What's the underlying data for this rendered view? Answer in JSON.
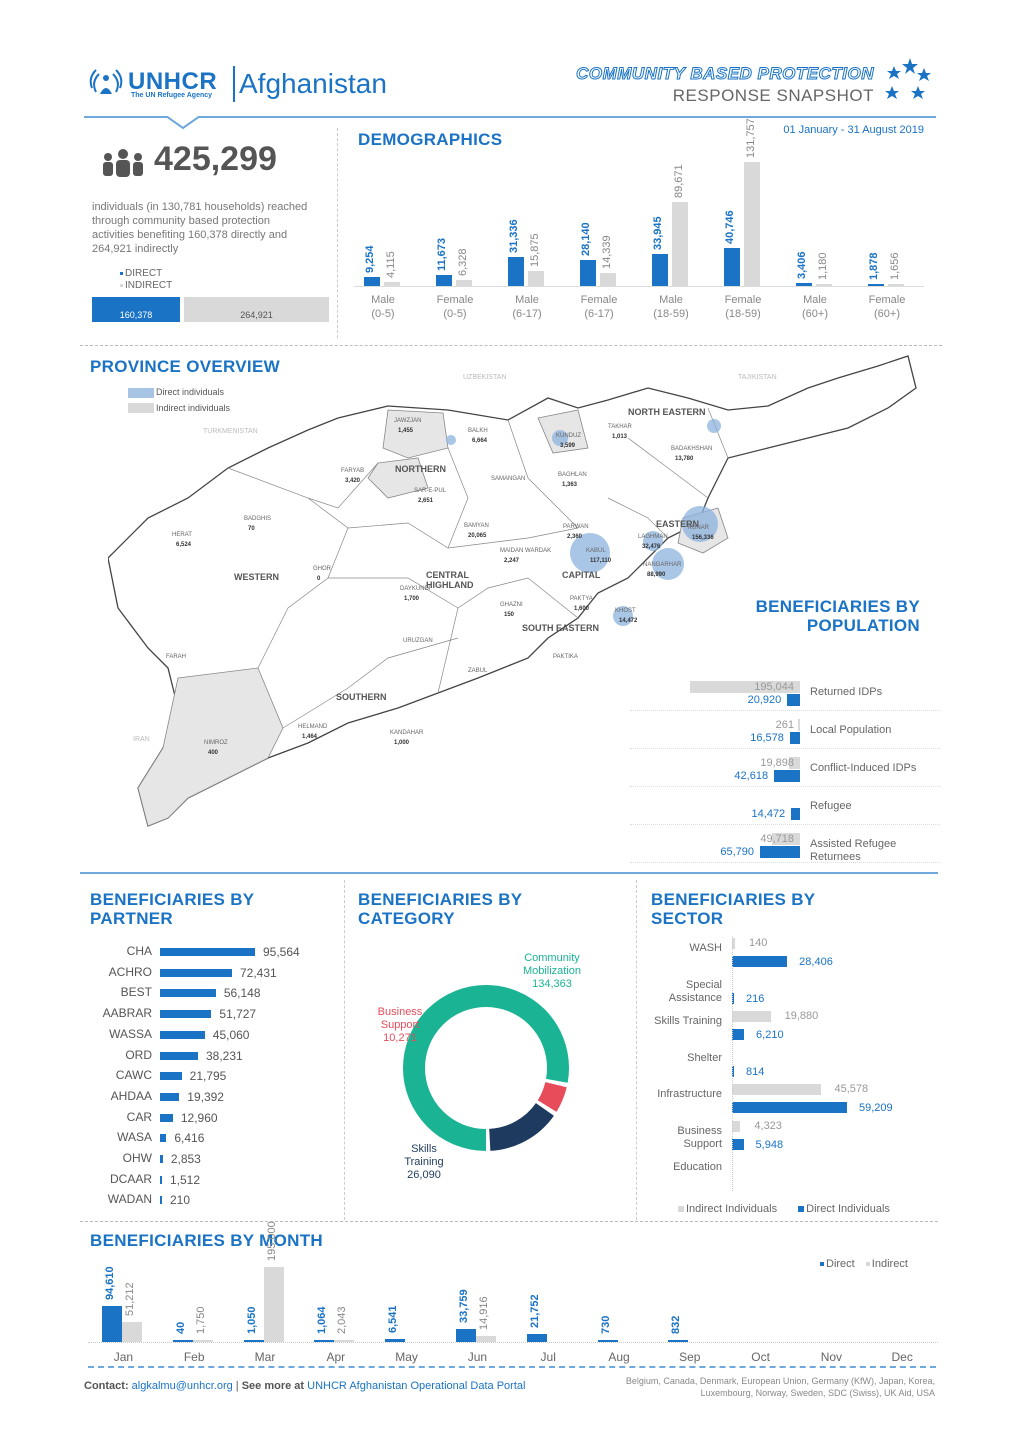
{
  "header": {
    "org": "UNHCR",
    "org_sub": "The UN Refugee Agency",
    "country": "Afghanistan",
    "title_line1": "COMMUNITY BASED PROTECTION",
    "title_line2": "RESPONSE SNAPSHOT",
    "date_range": "01 January - 31 August 2019"
  },
  "kpi": {
    "total": "425,299",
    "description": "individuals (in 130,781 households) reached through community based protection activities benefiting 160,378 directly and 264,921 indirectly",
    "legend_direct": "DIRECT",
    "legend_indirect": "INDIRECT",
    "direct": "160,378",
    "indirect": "264,921",
    "direct_value": 160378,
    "indirect_value": 264921
  },
  "demographics": {
    "title": "DEMOGRAPHICS",
    "groups": [
      {
        "label1": "Male",
        "label2": "(0-5)",
        "direct": "9,254",
        "indirect": "4,115",
        "d": 9254,
        "i": 4115
      },
      {
        "label1": "Female",
        "label2": "(0-5)",
        "direct": "11,673",
        "indirect": "6,328",
        "d": 11673,
        "i": 6328
      },
      {
        "label1": "Male",
        "label2": "(6-17)",
        "direct": "31,336",
        "indirect": "15,875",
        "d": 31336,
        "i": 15875
      },
      {
        "label1": "Female",
        "label2": "(6-17)",
        "direct": "28,140",
        "indirect": "14,339",
        "d": 28140,
        "i": 14339
      },
      {
        "label1": "Male",
        "label2": "(18-59)",
        "direct": "33,945",
        "indirect": "89,671",
        "d": 33945,
        "i": 89671
      },
      {
        "label1": "Female",
        "label2": "(18-59)",
        "direct": "40,746",
        "indirect": "131,757",
        "d": 40746,
        "i": 131757
      },
      {
        "label1": "Male",
        "label2": "(60+)",
        "direct": "3,406",
        "indirect": "1,180",
        "d": 3406,
        "i": 1180
      },
      {
        "label1": "Female",
        "label2": "(60+)",
        "direct": "1,878",
        "indirect": "1,656",
        "d": 1878,
        "i": 1656
      }
    ]
  },
  "province": {
    "title": "PROVINCE OVERVIEW",
    "legend_direct": "Direct individuals",
    "legend_indirect": "Indirect individuals",
    "countries": [
      "UZBEKISTAN",
      "TAJIKISTAN",
      "TURKMENISTAN",
      "IRAN"
    ],
    "regions": [
      "NORTH EASTERN",
      "NORTHERN",
      "EASTERN",
      "CENTRAL HIGHLAND",
      "WESTERN",
      "CAPITAL",
      "SOUTH EASTERN",
      "SOUTHERN"
    ],
    "labels": [
      {
        "name": "JAWZJAN",
        "value": "1,455"
      },
      {
        "name": "BALKH",
        "value": "6,664"
      },
      {
        "name": "KUNDUZ",
        "value": "3,599"
      },
      {
        "name": "TAKHAR",
        "value": "1,013"
      },
      {
        "name": "BADAKHSHAN",
        "value": "13,780"
      },
      {
        "name": "FARYAB",
        "value": "3,420"
      },
      {
        "name": "SAR-E-PUL",
        "value": "2,651"
      },
      {
        "name": "SAMANGAN",
        "value": ""
      },
      {
        "name": "BAGHLAN",
        "value": "1,363"
      },
      {
        "name": "BADGHIS",
        "value": "70"
      },
      {
        "name": "BAMYAN",
        "value": "20,065"
      },
      {
        "name": "KABUL",
        "value": "117,110"
      },
      {
        "name": "NANGARHAR",
        "value": "88,990"
      },
      {
        "name": "KUNAR",
        "value": "156,336"
      },
      {
        "name": "HERAT",
        "value": "6,524"
      },
      {
        "name": "GHOR",
        "value": "0"
      },
      {
        "name": "MAIDAN WARDAK",
        "value": "2,247"
      },
      {
        "name": "DAYKUNDI",
        "value": "1,700"
      },
      {
        "name": "GHAZNI",
        "value": "150"
      },
      {
        "name": "PAKTYA",
        "value": "1,600"
      },
      {
        "name": "KHOST",
        "value": "14,472"
      },
      {
        "name": "URUZGAN",
        "value": ""
      },
      {
        "name": "ZABUL",
        "value": ""
      },
      {
        "name": "PAKTIKA",
        "value": ""
      },
      {
        "name": "FARAH",
        "value": ""
      },
      {
        "name": "NIMROZ",
        "value": "400"
      },
      {
        "name": "HELMAND",
        "value": "1,464"
      },
      {
        "name": "KANDAHAR",
        "value": "1,000"
      },
      {
        "name": "LAGHMAN",
        "value": "32,476"
      },
      {
        "name": "PARWAN",
        "value": "2,360"
      }
    ]
  },
  "population": {
    "title_line1": "BENEFICIARIES BY",
    "title_line2": "POPULATION",
    "items": [
      {
        "label": "Returned IDPs",
        "indirect": "195,044",
        "direct": "20,920",
        "i": 195044,
        "d": 20920
      },
      {
        "label": "Local Population",
        "indirect": "261",
        "direct": "16,578",
        "i": 261,
        "d": 16578
      },
      {
        "label": "Conflict-Induced IDPs",
        "indirect": "19,898",
        "direct": "42,618",
        "i": 19898,
        "d": 42618
      },
      {
        "label": "Refugee",
        "indirect": "",
        "direct": "14,472",
        "i": 0,
        "d": 14472
      },
      {
        "label": "Assisted Refugee Returnees",
        "indirect": "49,718",
        "direct": "65,790",
        "i": 49718,
        "d": 65790
      }
    ]
  },
  "partner": {
    "title_line1": "BENEFICIARIES BY",
    "title_line2": "PARTNER",
    "items": [
      {
        "name": "CHA",
        "value": "95,564",
        "v": 95564
      },
      {
        "name": "ACHRO",
        "value": "72,431",
        "v": 72431
      },
      {
        "name": "BEST",
        "value": "56,148",
        "v": 56148
      },
      {
        "name": "AABRAR",
        "value": "51,727",
        "v": 51727
      },
      {
        "name": "WASSA",
        "value": "45,060",
        "v": 45060
      },
      {
        "name": "ORD",
        "value": "38,231",
        "v": 38231
      },
      {
        "name": "CAWC",
        "value": "21,795",
        "v": 21795
      },
      {
        "name": "AHDAA",
        "value": "19,392",
        "v": 19392
      },
      {
        "name": "CAR",
        "value": "12,960",
        "v": 12960
      },
      {
        "name": "WASA",
        "value": "6,416",
        "v": 6416
      },
      {
        "name": "OHW",
        "value": "2,853",
        "v": 2853
      },
      {
        "name": "DCAAR",
        "value": "1,512",
        "v": 1512
      },
      {
        "name": "WADAN",
        "value": "210",
        "v": 210
      }
    ]
  },
  "category": {
    "title_line1": "BENEFICIARIES BY",
    "title_line2": "CATEGORY",
    "items": [
      {
        "label1": "Community",
        "label2": "Mobilization",
        "value": "134,363",
        "v": 134363,
        "color": "#1ab394"
      },
      {
        "label1": "Business",
        "label2": "Support",
        "value": "10,271",
        "v": 10271,
        "color": "#e84c5a"
      },
      {
        "label1": "Skills",
        "label2": "Training",
        "value": "26,090",
        "v": 26090,
        "color": "#1e3a5f"
      }
    ]
  },
  "sector": {
    "title_line1": "BENEFICIARIES BY",
    "title_line2": "SECTOR",
    "items": [
      {
        "label1": "WASH",
        "label2": "",
        "indirect": "140",
        "direct": "28,406",
        "i": 140,
        "d": 28406
      },
      {
        "label1": "Special",
        "label2": "Assistance",
        "indirect": "",
        "direct": "216",
        "i": 0,
        "d": 216
      },
      {
        "label1": "Skills Training",
        "label2": "",
        "indirect": "19,880",
        "direct": "6,210",
        "i": 19880,
        "d": 6210
      },
      {
        "label1": "Shelter",
        "label2": "",
        "indirect": "",
        "direct": "814",
        "i": 0,
        "d": 814
      },
      {
        "label1": "Infrastructure",
        "label2": "",
        "indirect": "45,578",
        "direct": "59,209",
        "i": 45578,
        "d": 59209
      },
      {
        "label1": "Business",
        "label2": "Support",
        "indirect": "4,323",
        "direct": "5,948",
        "i": 4323,
        "d": 5948
      },
      {
        "label1": "Education",
        "label2": "",
        "indirect": "",
        "direct": "",
        "i": 0,
        "d": 0
      }
    ],
    "legend_indirect": "Indirect Individuals",
    "legend_direct": "Direct Individuals"
  },
  "month": {
    "title": "BENEFICIARIES BY MONTH",
    "legend_direct": "Direct",
    "legend_indirect": "Indirect",
    "items": [
      {
        "m": "Jan",
        "direct": "94,610",
        "indirect": "51,212",
        "d": 94610,
        "i": 51212
      },
      {
        "m": "Feb",
        "direct": "40",
        "indirect": "1,750",
        "d": 40,
        "i": 1750
      },
      {
        "m": "Mar",
        "direct": "1,050",
        "indirect": "195,000",
        "d": 1050,
        "i": 195000
      },
      {
        "m": "Apr",
        "direct": "1,064",
        "indirect": "2,043",
        "d": 1064,
        "i": 2043
      },
      {
        "m": "May",
        "direct": "6,541",
        "indirect": "",
        "d": 6541,
        "i": 0
      },
      {
        "m": "Jun",
        "direct": "33,759",
        "indirect": "14,916",
        "d": 33759,
        "i": 14916
      },
      {
        "m": "Jul",
        "direct": "21,752",
        "indirect": "",
        "d": 21752,
        "i": 0
      },
      {
        "m": "Aug",
        "direct": "730",
        "indirect": "",
        "d": 730,
        "i": 0
      },
      {
        "m": "Sep",
        "direct": "832",
        "indirect": "",
        "d": 832,
        "i": 0
      },
      {
        "m": "Oct",
        "direct": "",
        "indirect": "",
        "d": 0,
        "i": 0
      },
      {
        "m": "Nov",
        "direct": "",
        "indirect": "",
        "d": 0,
        "i": 0
      },
      {
        "m": "Dec",
        "direct": "",
        "indirect": "",
        "d": 0,
        "i": 0
      }
    ]
  },
  "footer": {
    "contact_label": "Contact:",
    "contact_email": "algkalmu@unhcr.org",
    "see_more": "See more at",
    "portal": "UNHCR Afghanistan Operational Data Portal",
    "donors": "Belgium, Canada, Denmark, European Union, Germany (KfW), Japan, Korea, Luxembourg, Norway, Sweden, SDC (Swiss), UK Aid, USA"
  },
  "colors": {
    "primary": "#1a73c5",
    "indirect": "#d9d9d9"
  }
}
